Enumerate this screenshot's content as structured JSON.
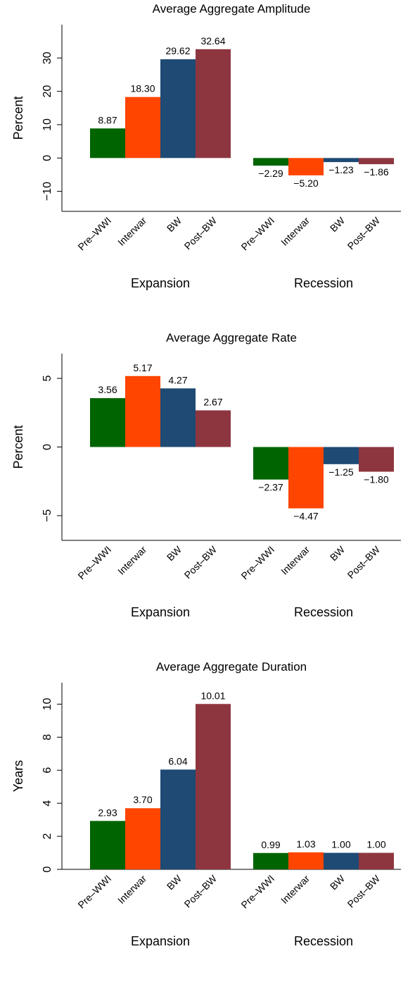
{
  "chart_data": [
    {
      "type": "bar",
      "title": "Average Aggregate Amplitude",
      "y_label": "Percent",
      "groups": [
        "Expansion",
        "Recession"
      ],
      "series": [
        {
          "name": "Pre–WWI",
          "color": "#006400",
          "values": [
            8.87,
            -2.29
          ],
          "value_labels": [
            "8.87",
            "−2.29"
          ]
        },
        {
          "name": "Interwar",
          "color": "#ff4500",
          "values": [
            18.3,
            -5.2
          ],
          "value_labels": [
            "18.30",
            "−5.20"
          ]
        },
        {
          "name": "BW",
          "color": "#1e4a74",
          "values": [
            29.62,
            -1.23
          ],
          "value_labels": [
            "29.62",
            "−1.23"
          ]
        },
        {
          "name": "Post–BW",
          "color": "#8e3640",
          "values": [
            32.64,
            -1.86
          ],
          "value_labels": [
            "32.64",
            "−1.86"
          ]
        }
      ],
      "ylim": [
        -16,
        40
      ],
      "yticks": [
        {
          "value": -10,
          "label": "−10"
        },
        0,
        10,
        20,
        30
      ]
    },
    {
      "type": "bar",
      "title": "Average Aggregate Rate",
      "y_label": "Percent",
      "groups": [
        "Expansion",
        "Recession"
      ],
      "series": [
        {
          "name": "Pre–WWI",
          "color": "#006400",
          "values": [
            3.56,
            -2.37
          ],
          "value_labels": [
            "3.56",
            "−2.37"
          ]
        },
        {
          "name": "Interwar",
          "color": "#ff4500",
          "values": [
            5.17,
            -4.47
          ],
          "value_labels": [
            "5.17",
            "−4.47"
          ]
        },
        {
          "name": "BW",
          "color": "#1e4a74",
          "values": [
            4.27,
            -1.25
          ],
          "value_labels": [
            "4.27",
            "−1.25"
          ]
        },
        {
          "name": "Post–BW",
          "color": "#8e3640",
          "values": [
            2.67,
            -1.8
          ],
          "value_labels": [
            "2.67",
            "−1.80"
          ]
        }
      ],
      "ylim": [
        -6.8,
        6.8
      ],
      "yticks": [
        {
          "value": -5,
          "label": "−5"
        },
        0,
        5
      ]
    },
    {
      "type": "bar",
      "title": "Average Aggregate Duration",
      "y_label": "Years",
      "groups": [
        "Expansion",
        "Recession"
      ],
      "series": [
        {
          "name": "Pre–WWI",
          "color": "#006400",
          "values": [
            2.93,
            0.99
          ],
          "value_labels": [
            "2.93",
            "0.99"
          ]
        },
        {
          "name": "Interwar",
          "color": "#ff4500",
          "values": [
            3.7,
            1.03
          ],
          "value_labels": [
            "3.70",
            "1.03"
          ]
        },
        {
          "name": "BW",
          "color": "#1e4a74",
          "values": [
            6.04,
            1.0
          ],
          "value_labels": [
            "6.04",
            "1.00"
          ]
        },
        {
          "name": "Post–BW",
          "color": "#8e3640",
          "values": [
            10.01,
            1.0
          ],
          "value_labels": [
            "10.01",
            "1.00"
          ]
        }
      ],
      "ylim": [
        0,
        11.3
      ],
      "yticks": [
        0,
        2,
        4,
        6,
        8,
        10
      ]
    }
  ]
}
